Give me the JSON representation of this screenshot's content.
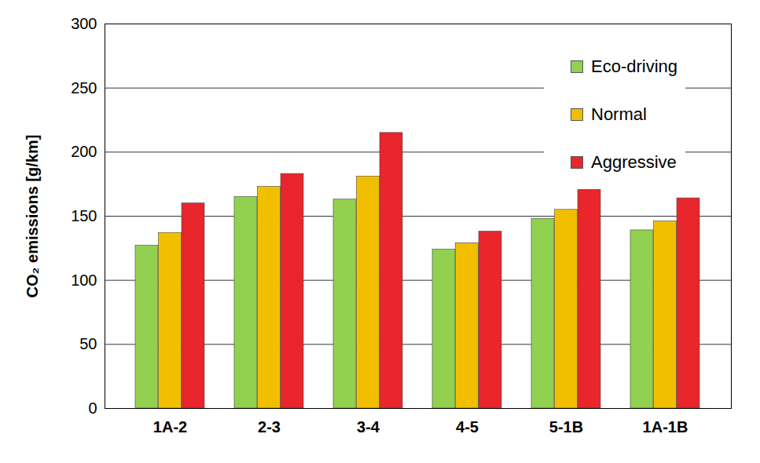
{
  "chart_data": {
    "type": "bar",
    "y_label": "CO₂ emissions [g/km]",
    "categories": [
      "1A-2",
      "2-3",
      "3-4",
      "4-5",
      "5-1B",
      "1A-1B"
    ],
    "series": [
      {
        "name": "Eco-driving",
        "color": "#92d050",
        "values": [
          127,
          165,
          163,
          124,
          148,
          139
        ]
      },
      {
        "name": "Normal",
        "color": "#f2bf00",
        "values": [
          137,
          173,
          181,
          129,
          155,
          146
        ]
      },
      {
        "name": "Aggressive",
        "color": "#e8262b",
        "values": [
          160,
          183,
          215,
          138,
          172,
          164
        ]
      }
    ],
    "ylim": [
      0,
      300
    ],
    "yticks": [
      0,
      50,
      100,
      150,
      200,
      250,
      300
    ],
    "grid": true,
    "legend": "upper right"
  }
}
